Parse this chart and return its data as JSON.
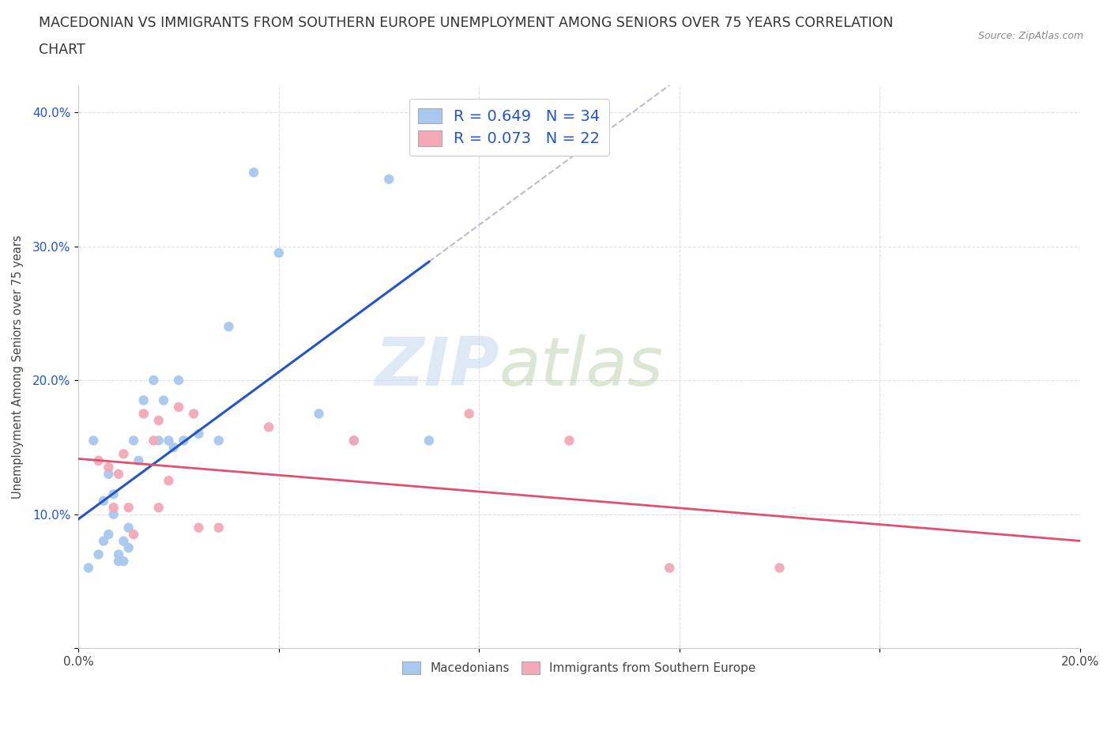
{
  "title_line1": "MACEDONIAN VS IMMIGRANTS FROM SOUTHERN EUROPE UNEMPLOYMENT AMONG SENIORS OVER 75 YEARS CORRELATION",
  "title_line2": "CHART",
  "source": "Source: ZipAtlas.com",
  "ylabel": "Unemployment Among Seniors over 75 years",
  "xlim": [
    0.0,
    0.2
  ],
  "ylim": [
    0.0,
    0.42
  ],
  "xticks": [
    0.0,
    0.04,
    0.08,
    0.12,
    0.16,
    0.2
  ],
  "yticks": [
    0.0,
    0.1,
    0.2,
    0.3,
    0.4
  ],
  "xtick_labels": [
    "0.0%",
    "",
    "",
    "",
    "",
    "20.0%"
  ],
  "ytick_labels": [
    "",
    "10.0%",
    "20.0%",
    "30.0%",
    "40.0%"
  ],
  "macedonian_color": "#a8c8f0",
  "immigrant_color": "#f4a8b8",
  "macedonian_line_color": "#2255cc",
  "immigrant_line_color": "#e05070",
  "dash_color": "#bbbbcc",
  "macedonian_R": 0.649,
  "macedonian_N": 34,
  "immigrant_R": 0.073,
  "immigrant_N": 22,
  "watermark_zip": "ZIP",
  "watermark_atlas": "atlas",
  "legend_color": "#2255cc",
  "macedonians_x": [
    0.002,
    0.003,
    0.004,
    0.005,
    0.005,
    0.006,
    0.006,
    0.007,
    0.007,
    0.008,
    0.008,
    0.009,
    0.009,
    0.01,
    0.01,
    0.011,
    0.012,
    0.013,
    0.015,
    0.016,
    0.017,
    0.018,
    0.019,
    0.02,
    0.021,
    0.024,
    0.028,
    0.03,
    0.035,
    0.04,
    0.048,
    0.055,
    0.062,
    0.07
  ],
  "macedonians_y": [
    0.06,
    0.155,
    0.07,
    0.11,
    0.08,
    0.085,
    0.13,
    0.1,
    0.115,
    0.065,
    0.07,
    0.065,
    0.08,
    0.09,
    0.075,
    0.155,
    0.14,
    0.185,
    0.2,
    0.155,
    0.185,
    0.155,
    0.15,
    0.2,
    0.155,
    0.16,
    0.155,
    0.24,
    0.355,
    0.295,
    0.175,
    0.155,
    0.35,
    0.155
  ],
  "immigrants_x": [
    0.004,
    0.006,
    0.007,
    0.008,
    0.009,
    0.01,
    0.011,
    0.013,
    0.015,
    0.016,
    0.016,
    0.018,
    0.02,
    0.023,
    0.024,
    0.028,
    0.038,
    0.055,
    0.078,
    0.098,
    0.118,
    0.14
  ],
  "immigrants_y": [
    0.14,
    0.135,
    0.105,
    0.13,
    0.145,
    0.105,
    0.085,
    0.175,
    0.155,
    0.17,
    0.105,
    0.125,
    0.18,
    0.175,
    0.09,
    0.09,
    0.165,
    0.155,
    0.175,
    0.155,
    0.06,
    0.06
  ],
  "background_color": "#ffffff",
  "grid_color": "#ddddee",
  "title_fontsize": 12.5,
  "axis_label_fontsize": 10.5,
  "tick_fontsize": 11
}
